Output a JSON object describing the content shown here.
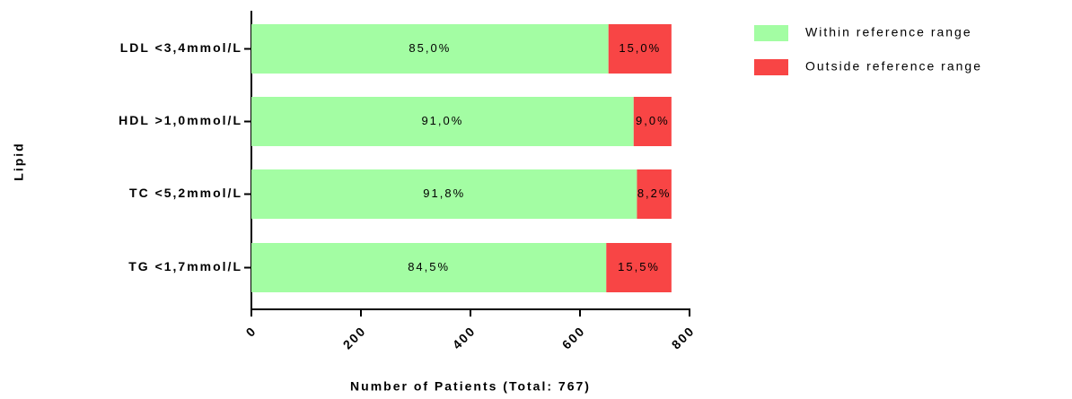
{
  "chart_data": {
    "type": "stacked_barh",
    "categories": [
      "LDL <3,4mmol/L",
      "HDL >1,0mmol/L",
      "TC <5,2mmol/L",
      "TG <1,7mmol/L"
    ],
    "series": [
      {
        "name": "Within reference range",
        "color": "#a3fda3",
        "values": [
          652,
          698,
          704,
          648
        ],
        "value_labels": [
          "85,0%",
          "91,0%",
          "91,8%",
          "84,5%"
        ]
      },
      {
        "name": "Outside reference range",
        "color": "#f84545",
        "values": [
          115,
          69,
          63,
          119
        ],
        "value_labels": [
          "15,0%",
          "9,0%",
          "8,2%",
          "15,5%"
        ]
      }
    ],
    "xlim": [
      0,
      800
    ],
    "xticks": [
      0,
      200,
      400,
      600,
      800
    ],
    "xlabel": "Number of Patients (Total: 767)",
    "ylabel": "Lipid",
    "legend": "top-right"
  }
}
